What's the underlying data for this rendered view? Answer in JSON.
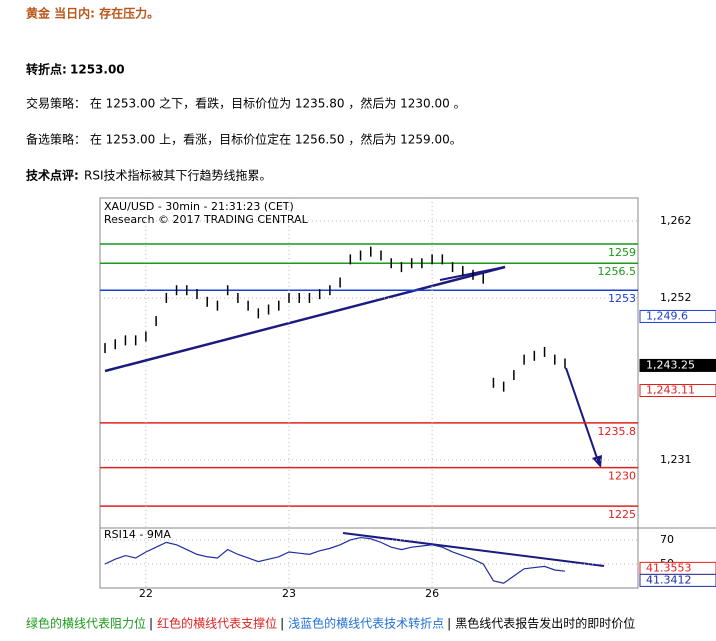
{
  "header": {
    "title": "黄金 当日内: 存在压力。"
  },
  "pivot": {
    "label": "转折点:",
    "value": "1253.00"
  },
  "strategy": "交易策略： 在 1253.00 之下，看跌，目标价位为 1235.80 ，然后为 1230.00 。",
  "alternative": "备选策略： 在 1253.00 上，看涨，目标价位定在 1256.50 ，然后为 1259.00。",
  "comment": {
    "label": "技术点评:",
    "text": "RSI技术指标被其下行趋势线拖累。"
  },
  "chart_data": [
    {
      "type": "bar",
      "title": "XAU/USD - 30min - 21:31:23 (CET)",
      "subtitle": "Research © 2017 TRADING CENTRAL",
      "categories": [
        null,
        null,
        null,
        null,
        "22",
        null,
        null,
        null,
        null,
        null,
        null,
        null,
        null,
        null,
        null,
        null,
        null,
        null,
        "23",
        null,
        null,
        null,
        null,
        null,
        null,
        null,
        null,
        null,
        null,
        null,
        null,
        null,
        "26",
        null,
        null,
        null,
        null,
        null,
        null,
        null,
        null,
        null,
        null,
        null,
        null,
        null
      ],
      "series": [
        {
          "name": "XAU/USD",
          "color": "#000000",
          "values": [
            1245.5,
            1246,
            1246.5,
            1246.5,
            1247,
            1249,
            1252,
            1253,
            1253,
            1252.5,
            1251.5,
            1251,
            1253,
            1252,
            1251,
            1250,
            1250.5,
            1251,
            1252,
            1252,
            1252,
            1252.5,
            1253,
            1254,
            1257,
            1257.5,
            1258,
            1257.5,
            1256.5,
            1256,
            1256.5,
            1256.5,
            1257,
            1257,
            1256,
            1255.5,
            1255,
            1254.5,
            1241,
            1240.5,
            1242,
            1244,
            1244.5,
            1245,
            1244,
            1243.5
          ]
        }
      ],
      "levels": [
        {
          "value": 1259,
          "color": "#1a9a1a"
        },
        {
          "value": 1256.5,
          "color": "#1a9a1a"
        },
        {
          "value": 1253,
          "color": "#1f3fd0"
        },
        {
          "value": 1235.8,
          "color": "#e0201e"
        },
        {
          "value": 1230,
          "color": "#e0201e"
        },
        {
          "value": 1225,
          "color": "#e0201e"
        }
      ],
      "markers": [
        {
          "value": 1249.6,
          "label": "1,249.6",
          "color": "#1f3fd0"
        },
        {
          "value": 1243.25,
          "label": "1,243.25",
          "color": "#000000"
        },
        {
          "value": 1243.11,
          "label": "1,243.11",
          "color": "#e0201e"
        }
      ],
      "ylim": [
        1222.3,
        1264.7
      ],
      "yticks": [
        {
          "value": 1262,
          "label": "1,262"
        },
        {
          "value": 1252,
          "label": "1,252"
        },
        {
          "value": 1231,
          "label": "1,231"
        }
      ],
      "grid": true
    },
    {
      "type": "line",
      "title": "RSI14 - 9MA",
      "series": [
        {
          "name": "RSI14",
          "color": "#1f2fa0",
          "values": [
            50,
            54,
            57,
            55,
            60,
            64,
            68,
            66,
            62,
            58,
            56,
            55,
            62,
            58,
            55,
            52,
            54,
            56,
            60,
            59,
            58,
            61,
            63,
            66,
            70,
            72,
            71,
            68,
            64,
            62,
            64,
            65,
            66,
            64,
            60,
            57,
            54,
            50,
            36,
            34,
            40,
            46,
            47,
            48,
            45,
            44
          ]
        }
      ],
      "ylim": [
        32.5,
        78.3
      ],
      "yticks": [
        70,
        50
      ],
      "markers": [
        {
          "value": 41.3553,
          "label": "41.3553",
          "color": "#e0201e"
        },
        {
          "value": 41.3412,
          "label": "41.3412",
          "color": "#1f2fa0"
        }
      ]
    }
  ],
  "footer": {
    "separator": "|",
    "items": [
      {
        "text": "绿色的横线代表阻力位",
        "color": "#1a9a1a"
      },
      {
        "text": "红色的横线代表支撑位",
        "color": "#e0201e"
      },
      {
        "text": "浅蓝色的横线代表技术转折点",
        "color": "#1e6fd9"
      },
      {
        "text": "黑色线代表报告发出时的即时价位",
        "color": "#000000"
      }
    ]
  }
}
